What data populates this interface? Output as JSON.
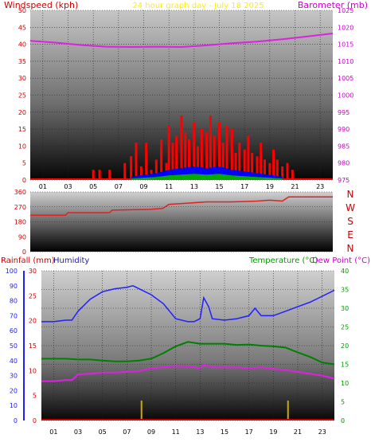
{
  "header": {
    "left_label": "Windspeed (kph)",
    "title": "24 hour graph day - July 18 2025",
    "right_label": "Barometer (mb)"
  },
  "middle": {
    "compass": [
      "N",
      "W",
      "S",
      "E",
      "N"
    ]
  },
  "bottom_header": {
    "rain_label": "Rainfall (mm)",
    "humidity_label": "Humidity",
    "temp_label": "Temperature (°C)",
    "dew_label": "Dew Point (°C)"
  },
  "colors": {
    "wind": "#ff0000",
    "gust": "#ff0000",
    "wind_avg": "#0000ff",
    "wind_low": "#00aa00",
    "barometer": "#e020e0",
    "direction": "#dd2222",
    "humidity": "#2020ff",
    "temperature": "#008000",
    "dewpoint": "#e020e0",
    "rain": "#ccaa00",
    "axis_left": "#cc0000",
    "axis_right": "#cc00cc",
    "axis_green": "#009900",
    "axis_blue": "#2020ff"
  },
  "chart_data": [
    {
      "type": "area",
      "name": "windspeed-barometer",
      "x_label": "hour",
      "x_ticks": [
        "01",
        "03",
        "05",
        "07",
        "09",
        "11",
        "13",
        "15",
        "17",
        "19",
        "21",
        "23"
      ],
      "left_axis": {
        "label": "Windspeed (kph)",
        "ticks": [
          "0",
          "5",
          "10",
          "15",
          "20",
          "25",
          "30",
          "35",
          "40",
          "45",
          "50"
        ],
        "ylim": [
          0,
          50
        ]
      },
      "right_axis": {
        "label": "Barometer (mb)",
        "ticks": [
          "975",
          "980",
          "985",
          "990",
          "995",
          "1000",
          "1005",
          "1010",
          "1015",
          "1020",
          "1025"
        ],
        "ylim": [
          975,
          1025
        ]
      },
      "barometer": {
        "x": [
          0,
          2,
          4,
          6,
          8,
          10,
          12,
          14,
          16,
          18,
          20,
          22,
          24
        ],
        "y": [
          1016,
          1015.5,
          1014.8,
          1014.3,
          1014.2,
          1014.3,
          1014.2,
          1014.7,
          1015.3,
          1015.8,
          1016.5,
          1017.3,
          1018.2
        ]
      },
      "wind_gust": {
        "x": [
          5.0,
          5.5,
          6.3,
          7.5,
          8.0,
          8.4,
          8.8,
          9.2,
          9.6,
          10.0,
          10.4,
          10.8,
          11.0,
          11.3,
          11.6,
          12.0,
          12.3,
          12.6,
          13.0,
          13.3,
          13.6,
          14.0,
          14.3,
          14.6,
          15.0,
          15.3,
          15.6,
          16.0,
          16.3,
          16.6,
          17.0,
          17.3,
          17.6,
          18.0,
          18.3,
          18.6,
          19.0,
          19.3,
          19.6,
          20.0,
          20.4,
          20.8
        ],
        "y": [
          3,
          3,
          3,
          5,
          7,
          11,
          4,
          11,
          3,
          6,
          12,
          5,
          16,
          11,
          13,
          19,
          14,
          12,
          17,
          10,
          15,
          14,
          19,
          13,
          17,
          11,
          16,
          15,
          8,
          11,
          9,
          13,
          8,
          7,
          11,
          6,
          5,
          9,
          6,
          4,
          5,
          3
        ]
      },
      "wind_avg": {
        "x": [
          8,
          9,
          10,
          11,
          12,
          13,
          14,
          15,
          16,
          17,
          18,
          19,
          20
        ],
        "y": [
          1,
          1.5,
          2,
          3,
          3.5,
          4,
          3.5,
          4,
          3,
          2.5,
          2,
          1.5,
          1
        ]
      }
    },
    {
      "type": "line",
      "name": "wind-direction",
      "left_axis": {
        "ticks": [
          "0",
          "90",
          "180",
          "270",
          "360"
        ],
        "ylim": [
          0,
          360
        ]
      },
      "right_axis": {
        "ticks": [
          "N",
          "W",
          "S",
          "E",
          "N"
        ]
      },
      "x": [
        0,
        2.8,
        3.0,
        6.3,
        6.5,
        9.5,
        10.5,
        11.0,
        12.0,
        14.0,
        16.0,
        18.0,
        19.0,
        20.0,
        20.5,
        24.0
      ],
      "y": [
        220,
        220,
        235,
        235,
        250,
        255,
        260,
        285,
        290,
        300,
        300,
        305,
        310,
        305,
        330,
        330
      ]
    },
    {
      "type": "line",
      "name": "rain-humidity-temperature",
      "x_ticks": [
        "01",
        "03",
        "05",
        "07",
        "09",
        "11",
        "13",
        "15",
        "17",
        "19",
        "21",
        "23"
      ],
      "humidity_axis": {
        "label": "Humidity",
        "ticks": [
          "0",
          "10",
          "20",
          "30",
          "40",
          "50",
          "60",
          "70",
          "80",
          "90",
          "100"
        ],
        "ylim": [
          0,
          100
        ]
      },
      "rain_axis": {
        "label": "Rainfall (mm)",
        "ticks": [
          "0",
          "5",
          "10",
          "15",
          "20",
          "25",
          "30"
        ],
        "ylim": [
          0,
          30
        ]
      },
      "temp_axis": {
        "label": "Temperature (°C)",
        "ticks": [
          "0",
          "5",
          "10",
          "15",
          "20",
          "25",
          "30",
          "35",
          "40"
        ],
        "ylim": [
          0,
          40
        ]
      },
      "series": [
        {
          "name": "Humidity",
          "x": [
            0,
            1,
            2,
            2.5,
            3,
            4,
            5,
            6,
            7,
            7.5,
            8,
            9,
            10,
            11,
            12,
            12.5,
            13,
            13.3,
            13.7,
            14,
            15,
            16,
            17,
            17.5,
            18,
            19,
            20,
            21,
            22,
            23,
            24
          ],
          "y": [
            66,
            66,
            67,
            67,
            73,
            81,
            86,
            88,
            89,
            90,
            88,
            84,
            78,
            68,
            66,
            66,
            68,
            82,
            76,
            68,
            67,
            68,
            70,
            75,
            70,
            70,
            73,
            76,
            79,
            83,
            87
          ]
        },
        {
          "name": "Temperature",
          "x": [
            0,
            1,
            2,
            3,
            4,
            5,
            6,
            7,
            8,
            9,
            10,
            11,
            12,
            13,
            14,
            15,
            16,
            17,
            18,
            19,
            20,
            21,
            22,
            23,
            24
          ],
          "y": [
            16.5,
            16.5,
            16.5,
            16.3,
            16.3,
            16,
            15.8,
            15.8,
            16,
            16.5,
            18,
            19.8,
            21,
            20.5,
            20.5,
            20.5,
            20.2,
            20.3,
            20,
            19.8,
            19.5,
            18.2,
            17,
            15.5,
            15
          ]
        },
        {
          "name": "Dew Point",
          "x": [
            0,
            1,
            2,
            2.5,
            3,
            4,
            5,
            6,
            7,
            8,
            9,
            10,
            11,
            12,
            13,
            13.3,
            14,
            15,
            16,
            17,
            18,
            19,
            20,
            21,
            22,
            23,
            24
          ],
          "y": [
            10.5,
            10.5,
            10.8,
            10.8,
            12.3,
            12.5,
            12.8,
            12.8,
            13,
            13.2,
            14,
            14.2,
            14.6,
            14.4,
            14,
            15,
            14.2,
            14.2,
            14.2,
            14,
            14.2,
            13.8,
            13.5,
            13,
            12.5,
            12,
            11.2
          ]
        },
        {
          "name": "Rainfall",
          "x": [
            8.2,
            20.2
          ],
          "y": [
            4,
            4
          ]
        }
      ]
    }
  ]
}
